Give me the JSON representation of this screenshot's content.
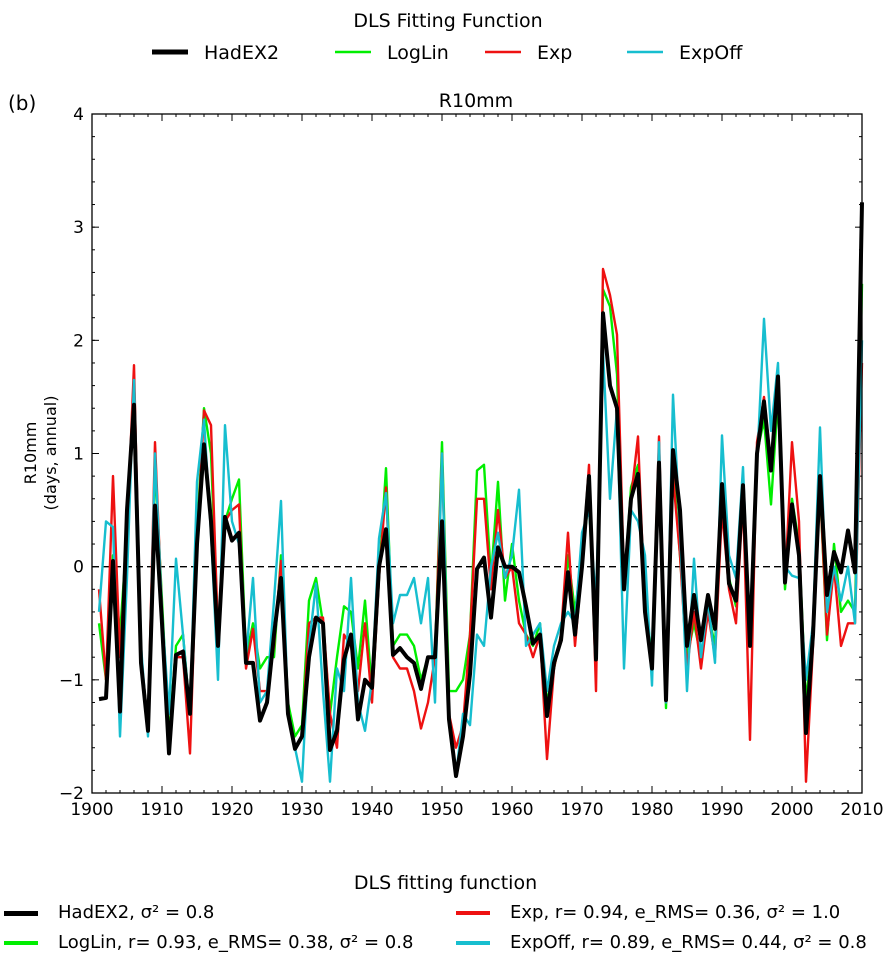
{
  "chart_data": {
    "type": "line",
    "panel_label": "(b)",
    "title": "R10mm",
    "ylabel": [
      "R10mm",
      "(days, annual)"
    ],
    "xlim": [
      1900,
      2010
    ],
    "ylim": [
      -2,
      4
    ],
    "xticks": [
      1900,
      1910,
      1920,
      1930,
      1940,
      1950,
      1960,
      1970,
      1980,
      1990,
      2000,
      2010
    ],
    "yticks": [
      -2,
      -1,
      0,
      1,
      2,
      3,
      4
    ],
    "ytick_labels": [
      "−2",
      "−1",
      "0",
      "1",
      "2",
      "3",
      "4"
    ],
    "zero_line": "dashed",
    "grid": false,
    "legend_top": {
      "title": "DLS Fitting Function",
      "placement": "top-center",
      "entries": [
        "HadEX2",
        "LogLin",
        "Exp",
        "ExpOff"
      ]
    },
    "legend_bottom": {
      "title": "DLS fitting function",
      "placement": "bottom",
      "entries": [
        {
          "name": "HadEX2",
          "stats": ", σ² =  0.8"
        },
        {
          "name": "LogLin",
          "stats": ", r= 0.93, e_RMS= 0.38, σ² =  0.8"
        },
        {
          "name": "Exp",
          "stats": ", r= 0.94, e_RMS= 0.36, σ² =  1.0"
        },
        {
          "name": "ExpOff",
          "stats": ", r= 0.89, e_RMS= 0.44, σ² =  0.8"
        }
      ]
    },
    "colors": {
      "HadEX2": "#000000",
      "LogLin": "#00ee00",
      "Exp": "#ee1111",
      "ExpOff": "#17becf"
    },
    "x": [
      1901,
      1902,
      1903,
      1904,
      1905,
      1906,
      1907,
      1908,
      1909,
      1910,
      1911,
      1912,
      1913,
      1914,
      1915,
      1916,
      1917,
      1918,
      1919,
      1920,
      1921,
      1922,
      1923,
      1924,
      1925,
      1926,
      1927,
      1928,
      1929,
      1930,
      1931,
      1932,
      1933,
      1934,
      1935,
      1936,
      1937,
      1938,
      1939,
      1940,
      1941,
      1942,
      1943,
      1944,
      1945,
      1946,
      1947,
      1948,
      1949,
      1950,
      1951,
      1952,
      1953,
      1954,
      1955,
      1956,
      1957,
      1958,
      1959,
      1960,
      1961,
      1962,
      1963,
      1964,
      1965,
      1966,
      1967,
      1968,
      1969,
      1970,
      1971,
      1972,
      1973,
      1974,
      1975,
      1976,
      1977,
      1978,
      1979,
      1980,
      1981,
      1982,
      1983,
      1984,
      1985,
      1986,
      1987,
      1988,
      1989,
      1990,
      1991,
      1992,
      1993,
      1994,
      1995,
      1996,
      1997,
      1998,
      1999,
      2000,
      2001,
      2002,
      2003,
      2004,
      2005,
      2006,
      2007,
      2008,
      2009,
      2010
    ],
    "series": [
      {
        "name": "LogLin",
        "values": [
          -0.5,
          -1.0,
          0.1,
          -0.6,
          0.3,
          1.6,
          -0.8,
          -1.4,
          0.9,
          -0.3,
          -1.5,
          -0.7,
          -0.6,
          -1.3,
          0.3,
          1.4,
          1.0,
          -0.6,
          0.4,
          0.6,
          0.77,
          -0.8,
          -0.5,
          -0.9,
          -0.8,
          -0.8,
          0.1,
          -1.2,
          -1.5,
          -1.4,
          -0.3,
          -0.1,
          -0.5,
          -1.3,
          -0.8,
          -0.35,
          -0.4,
          -0.9,
          -0.3,
          -1.1,
          -0.1,
          0.87,
          -0.7,
          -0.6,
          -0.6,
          -0.7,
          -1.0,
          -0.8,
          -0.8,
          1.1,
          -1.1,
          -1.1,
          -1.0,
          -0.6,
          0.85,
          0.9,
          -0.1,
          0.75,
          -0.3,
          0.2,
          -0.3,
          -0.6,
          -0.7,
          -0.5,
          -1.2,
          -0.9,
          -0.6,
          0.1,
          -0.4,
          0.1,
          0.6,
          -0.8,
          2.45,
          2.3,
          1.7,
          -0.2,
          0.7,
          0.9,
          -0.3,
          -0.8,
          1.0,
          -1.25,
          0.9,
          0.1,
          -0.8,
          -0.5,
          -0.8,
          -0.4,
          -0.7,
          0.7,
          -0.1,
          -0.35,
          0.6,
          -0.6,
          1.0,
          1.3,
          0.55,
          1.5,
          -0.2,
          0.6,
          0.2,
          -1.2,
          -0.6,
          0.7,
          -0.65,
          0.2,
          -0.4,
          -0.3,
          -0.4,
          2.5
        ]
      },
      {
        "name": "Exp",
        "values": [
          -0.2,
          -1.0,
          0.8,
          -0.8,
          0.3,
          1.78,
          -0.8,
          -1.4,
          1.1,
          -0.4,
          -1.6,
          -0.8,
          -0.8,
          -1.65,
          0.2,
          1.38,
          1.25,
          -0.6,
          0.4,
          0.5,
          0.55,
          -0.9,
          -0.55,
          -1.1,
          -1.1,
          -0.7,
          0.05,
          -1.3,
          -1.6,
          -1.5,
          -0.5,
          -0.45,
          -0.45,
          -1.3,
          -1.6,
          -0.6,
          -0.7,
          -1.1,
          -0.5,
          -1.2,
          -0.1,
          0.7,
          -0.8,
          -0.9,
          -0.9,
          -1.1,
          -1.43,
          -1.2,
          -0.8,
          1.0,
          -1.3,
          -1.6,
          -1.4,
          -0.6,
          0.6,
          0.6,
          -0.2,
          0.5,
          -0.1,
          0.0,
          -0.5,
          -0.6,
          -0.8,
          -0.6,
          -1.7,
          -0.9,
          -0.6,
          0.3,
          -0.7,
          0.0,
          0.9,
          -1.1,
          2.63,
          2.4,
          2.05,
          -0.1,
          0.6,
          1.15,
          -0.4,
          -0.9,
          1.15,
          -1.2,
          0.8,
          0.1,
          -0.9,
          -0.4,
          -0.9,
          -0.4,
          -0.8,
          0.5,
          -0.2,
          -0.5,
          0.6,
          -1.53,
          1.1,
          1.5,
          0.9,
          1.6,
          -0.15,
          1.1,
          0.4,
          -1.9,
          -0.7,
          0.7,
          -0.6,
          0.0,
          -0.7,
          -0.5,
          -0.5,
          1.8
        ]
      },
      {
        "name": "ExpOff",
        "values": [
          -0.4,
          0.4,
          0.35,
          -1.5,
          -0.1,
          1.65,
          -0.7,
          -1.5,
          1.0,
          -0.4,
          -1.3,
          0.07,
          -0.6,
          -1.3,
          0.75,
          1.3,
          0.3,
          -1.0,
          1.25,
          0.4,
          0.2,
          -0.8,
          -0.1,
          -1.2,
          -1.1,
          -0.3,
          0.58,
          -1.3,
          -1.6,
          -1.9,
          -0.7,
          -0.15,
          -1.1,
          -1.9,
          -0.9,
          -1.1,
          -0.1,
          -1.2,
          -1.45,
          -1.0,
          0.25,
          0.65,
          -0.5,
          -0.25,
          -0.25,
          -0.1,
          -0.5,
          -0.1,
          -1.2,
          1.0,
          -1.3,
          -1.85,
          -1.3,
          -1.4,
          -0.6,
          -0.7,
          0.0,
          0.3,
          -0.1,
          0.1,
          0.68,
          -0.7,
          -0.6,
          -0.5,
          -1.1,
          -0.7,
          -0.5,
          -0.4,
          -0.5,
          0.3,
          0.5,
          -0.3,
          1.9,
          0.6,
          1.4,
          -0.9,
          0.5,
          0.4,
          0.1,
          -1.05,
          1.1,
          -1.2,
          1.52,
          0.3,
          -1.1,
          0.07,
          -0.8,
          -0.3,
          -0.85,
          1.16,
          0.1,
          -0.1,
          0.88,
          -0.7,
          0.9,
          2.19,
          1.2,
          1.8,
          0.0,
          -0.08,
          -0.1,
          -1.0,
          -0.5,
          1.23,
          -0.4,
          0.0,
          -0.3,
          0.0,
          -0.5,
          2.0
        ]
      },
      {
        "name": "HadEX2",
        "values": [
          -1.17,
          -1.16,
          0.05,
          -1.28,
          0.5,
          1.43,
          -0.85,
          -1.45,
          0.54,
          -0.5,
          -1.65,
          -0.78,
          -0.75,
          -1.3,
          0.2,
          1.08,
          0.4,
          -0.7,
          0.44,
          0.23,
          0.3,
          -0.85,
          -0.85,
          -1.36,
          -1.2,
          -0.6,
          -0.1,
          -1.3,
          -1.61,
          -1.5,
          -0.8,
          -0.45,
          -0.5,
          -1.62,
          -1.45,
          -0.82,
          -0.6,
          -1.35,
          -1.0,
          -1.07,
          0.0,
          0.33,
          -0.78,
          -0.72,
          -0.8,
          -0.85,
          -1.08,
          -0.8,
          -0.8,
          0.4,
          -1.35,
          -1.85,
          -1.5,
          -0.95,
          -0.02,
          0.08,
          -0.45,
          0.17,
          0.0,
          0.0,
          -0.05,
          -0.35,
          -0.68,
          -0.6,
          -1.32,
          -0.85,
          -0.65,
          -0.05,
          -0.6,
          0.0,
          0.8,
          -0.82,
          2.24,
          1.6,
          1.4,
          -0.2,
          0.6,
          0.82,
          -0.4,
          -0.9,
          0.92,
          -1.18,
          1.03,
          0.5,
          -0.7,
          -0.25,
          -0.65,
          -0.25,
          -0.55,
          0.73,
          -0.15,
          -0.3,
          0.72,
          -0.7,
          1.0,
          1.46,
          0.85,
          1.68,
          -0.14,
          0.55,
          0.1,
          -1.47,
          -0.6,
          0.8,
          -0.25,
          0.13,
          -0.05,
          0.32,
          -0.05,
          3.22
        ]
      }
    ]
  }
}
